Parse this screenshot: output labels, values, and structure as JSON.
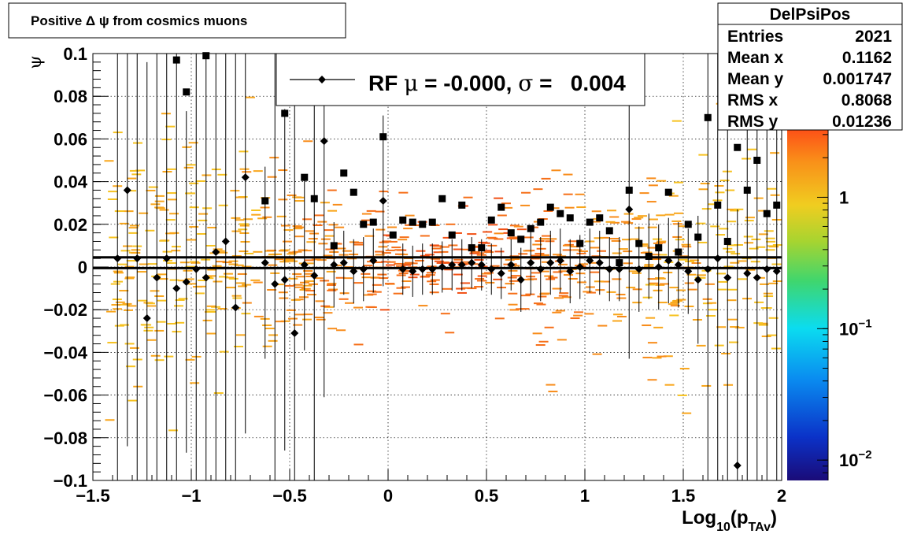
{
  "chart_data": {
    "type": "scatter",
    "title": "Positive Δ ψ from cosmics muons",
    "xlabel_main": "Log",
    "xlabel_sub1": "10",
    "xlabel_open": "(p",
    "xlabel_sub2": "TAv",
    "xlabel_close": ")",
    "ylabel": "ψ",
    "xlim": [
      -1.5,
      2.0
    ],
    "ylim": [
      -0.1,
      0.1
    ],
    "grid": true,
    "x_ticks": [
      {
        "v": -1.5,
        "label": "−1.5"
      },
      {
        "v": -1.0,
        "label": "−1"
      },
      {
        "v": -0.5,
        "label": "−0.5"
      },
      {
        "v": 0.0,
        "label": "0"
      },
      {
        "v": 0.5,
        "label": "0.5"
      },
      {
        "v": 1.0,
        "label": "1"
      },
      {
        "v": 1.5,
        "label": "1.5"
      },
      {
        "v": 2.0,
        "label": "2"
      }
    ],
    "y_ticks": [
      {
        "v": 0.1,
        "label": "0.1"
      },
      {
        "v": 0.08,
        "label": "0.08"
      },
      {
        "v": 0.06,
        "label": "0.06"
      },
      {
        "v": 0.04,
        "label": "0.04"
      },
      {
        "v": 0.02,
        "label": "0.02"
      },
      {
        "v": 0.0,
        "label": "0"
      },
      {
        "v": -0.02,
        "label": "−0.02"
      },
      {
        "v": -0.04,
        "label": "−0.04"
      },
      {
        "v": -0.06,
        "label": "−0.06"
      },
      {
        "v": -0.08,
        "label": "−0.08"
      },
      {
        "v": -0.1,
        "label": "−0.1"
      }
    ],
    "colorbar": {
      "scale": "log",
      "range": [
        0.007,
        4
      ],
      "ticks": [
        {
          "v": 1,
          "base": "1",
          "exp": ""
        },
        {
          "v": 0.1,
          "base": "10",
          "exp": "−1"
        },
        {
          "v": 0.01,
          "base": "10",
          "exp": "−2"
        }
      ]
    },
    "stats": {
      "name": "DelPsiPos",
      "rows": [
        {
          "label": "Entries",
          "value": "2021"
        },
        {
          "label": "Mean x",
          "value": "0.1162"
        },
        {
          "label": "Mean y",
          "value": "0.001747"
        },
        {
          "label": "RMS x",
          "value": "0.8068"
        },
        {
          "label": "RMS y",
          "value": "0.01236"
        }
      ]
    },
    "legend": {
      "placement": "top-center",
      "label_pre": "RF ",
      "mu": "μ",
      "label_mid": " = -0.000, ",
      "sigma": "σ",
      "label_post": " =   0.004"
    },
    "reference_lines": [
      0.0045,
      -0.0005
    ],
    "series": [
      {
        "name": "mean",
        "marker": "diamond",
        "points": [
          {
            "x": -1.375,
            "y": 0.004,
            "err": 0.12
          },
          {
            "x": -1.325,
            "y": 0.036,
            "err": 0.12
          },
          {
            "x": -1.275,
            "y": 0.004,
            "err": 0.12
          },
          {
            "x": -1.225,
            "y": -0.024,
            "err": 0.12
          },
          {
            "x": -1.175,
            "y": -0.005,
            "err": 0.12
          },
          {
            "x": -1.125,
            "y": 0.004,
            "err": 0.12
          },
          {
            "x": -1.075,
            "y": -0.01,
            "err": 0.12
          },
          {
            "x": -1.025,
            "y": -0.007,
            "err": 0.08
          },
          {
            "x": -0.975,
            "y": -0.001,
            "err": 0.12
          },
          {
            "x": -0.925,
            "y": -0.005,
            "err": 0.12
          },
          {
            "x": -0.875,
            "y": 0.007,
            "err": 0.12
          },
          {
            "x": -0.825,
            "y": 0.012,
            "err": 0.12
          },
          {
            "x": -0.775,
            "y": -0.019,
            "err": 0.12
          },
          {
            "x": -0.725,
            "y": 0.042,
            "err": 0.12
          },
          {
            "x": -0.625,
            "y": 0.002,
            "err": 0.045
          },
          {
            "x": -0.575,
            "y": -0.008,
            "err": 0.12
          },
          {
            "x": -0.525,
            "y": -0.006,
            "err": 0.08
          },
          {
            "x": -0.475,
            "y": -0.031,
            "err": 0.12
          },
          {
            "x": -0.425,
            "y": 0.001,
            "err": 0.04
          },
          {
            "x": -0.375,
            "y": -0.004,
            "err": 0.12
          },
          {
            "x": -0.325,
            "y": 0.059,
            "err": 0.12
          },
          {
            "x": -0.275,
            "y": 0.001,
            "err": 0.02
          },
          {
            "x": -0.225,
            "y": 0.002,
            "err": 0.015
          },
          {
            "x": -0.175,
            "y": -0.002,
            "err": 0.015
          },
          {
            "x": -0.125,
            "y": -0.001,
            "err": 0.015
          },
          {
            "x": -0.075,
            "y": 0.003,
            "err": 0.015
          },
          {
            "x": -0.025,
            "y": 0.031,
            "err": 0.04
          },
          {
            "x": 0.075,
            "y": -0.001,
            "err": 0.012
          },
          {
            "x": 0.125,
            "y": -0.002,
            "err": 0.012
          },
          {
            "x": 0.175,
            "y": -0.001,
            "err": 0.012
          },
          {
            "x": 0.225,
            "y": -0.001,
            "err": 0.012
          },
          {
            "x": 0.275,
            "y": 0.0,
            "err": 0.012
          },
          {
            "x": 0.325,
            "y": 0.001,
            "err": 0.012
          },
          {
            "x": 0.375,
            "y": 0.001,
            "err": 0.012
          },
          {
            "x": 0.425,
            "y": 0.002,
            "err": 0.012
          },
          {
            "x": 0.475,
            "y": 0.001,
            "err": 0.012
          },
          {
            "x": 0.525,
            "y": -0.001,
            "err": 0.012
          },
          {
            "x": 0.575,
            "y": -0.003,
            "err": 0.012
          },
          {
            "x": 0.625,
            "y": 0.001,
            "err": 0.012
          },
          {
            "x": 0.675,
            "y": -0.006,
            "err": 0.015
          },
          {
            "x": 0.725,
            "y": 0.002,
            "err": 0.015
          },
          {
            "x": 0.775,
            "y": -0.001,
            "err": 0.015
          },
          {
            "x": 0.825,
            "y": 0.002,
            "err": 0.015
          },
          {
            "x": 0.875,
            "y": 0.003,
            "err": 0.015
          },
          {
            "x": 0.925,
            "y": -0.002,
            "err": 0.015
          },
          {
            "x": 0.975,
            "y": 0.0,
            "err": 0.015
          },
          {
            "x": 1.025,
            "y": 0.003,
            "err": 0.015
          },
          {
            "x": 1.075,
            "y": 0.002,
            "err": 0.015
          },
          {
            "x": 1.125,
            "y": -0.001,
            "err": 0.015
          },
          {
            "x": 1.175,
            "y": -0.001,
            "err": 0.015
          },
          {
            "x": 1.225,
            "y": 0.027,
            "err": 0.07
          },
          {
            "x": 1.275,
            "y": -0.001,
            "err": 0.02
          },
          {
            "x": 1.325,
            "y": 0.005,
            "err": 0.02
          },
          {
            "x": 1.375,
            "y": 0.0,
            "err": 0.02
          },
          {
            "x": 1.425,
            "y": 0.003,
            "err": 0.02
          },
          {
            "x": 1.475,
            "y": 0.001,
            "err": 0.02
          },
          {
            "x": 1.525,
            "y": -0.002,
            "err": 0.02
          },
          {
            "x": 1.575,
            "y": -0.006,
            "err": 0.03
          },
          {
            "x": 1.625,
            "y": -0.001,
            "err": 0.12
          },
          {
            "x": 1.675,
            "y": 0.004,
            "err": 0.12
          },
          {
            "x": 1.725,
            "y": -0.005,
            "err": 0.12
          },
          {
            "x": 1.775,
            "y": -0.093,
            "err": 0.12
          },
          {
            "x": 1.825,
            "y": -0.003,
            "err": 0.12
          },
          {
            "x": 1.875,
            "y": -0.005,
            "err": 0.12
          },
          {
            "x": 1.925,
            "y": -0.001,
            "err": 0.12
          },
          {
            "x": 1.975,
            "y": -0.002,
            "err": 0.12
          }
        ]
      },
      {
        "name": "rms",
        "marker": "square",
        "points": [
          {
            "x": -1.075,
            "y": 0.097
          },
          {
            "x": -1.025,
            "y": 0.082
          },
          {
            "x": -0.925,
            "y": 0.099
          },
          {
            "x": -0.625,
            "y": 0.031
          },
          {
            "x": -0.525,
            "y": 0.072
          },
          {
            "x": -0.425,
            "y": 0.042
          },
          {
            "x": -0.375,
            "y": 0.032
          },
          {
            "x": -0.275,
            "y": 0.01
          },
          {
            "x": -0.225,
            "y": 0.044
          },
          {
            "x": -0.175,
            "y": 0.035
          },
          {
            "x": -0.125,
            "y": 0.02
          },
          {
            "x": -0.075,
            "y": 0.021
          },
          {
            "x": -0.025,
            "y": 0.061
          },
          {
            "x": 0.025,
            "y": 0.015
          },
          {
            "x": 0.075,
            "y": 0.022
          },
          {
            "x": 0.125,
            "y": 0.021
          },
          {
            "x": 0.175,
            "y": 0.02
          },
          {
            "x": 0.225,
            "y": 0.021
          },
          {
            "x": 0.275,
            "y": 0.032
          },
          {
            "x": 0.325,
            "y": 0.015
          },
          {
            "x": 0.375,
            "y": 0.029
          },
          {
            "x": 0.425,
            "y": 0.009
          },
          {
            "x": 0.475,
            "y": 0.009
          },
          {
            "x": 0.525,
            "y": 0.022
          },
          {
            "x": 0.575,
            "y": 0.028
          },
          {
            "x": 0.625,
            "y": 0.016
          },
          {
            "x": 0.675,
            "y": 0.013
          },
          {
            "x": 0.725,
            "y": 0.018
          },
          {
            "x": 0.775,
            "y": 0.021
          },
          {
            "x": 0.825,
            "y": 0.028
          },
          {
            "x": 0.875,
            "y": 0.025
          },
          {
            "x": 0.925,
            "y": 0.023
          },
          {
            "x": 0.975,
            "y": 0.011
          },
          {
            "x": 1.025,
            "y": 0.021
          },
          {
            "x": 1.075,
            "y": 0.023
          },
          {
            "x": 1.125,
            "y": 0.017
          },
          {
            "x": 1.175,
            "y": 0.002
          },
          {
            "x": 1.225,
            "y": 0.036
          },
          {
            "x": 1.275,
            "y": 0.011
          },
          {
            "x": 1.325,
            "y": 0.005
          },
          {
            "x": 1.375,
            "y": 0.009
          },
          {
            "x": 1.425,
            "y": 0.035
          },
          {
            "x": 1.475,
            "y": 0.007
          },
          {
            "x": 1.525,
            "y": 0.02
          },
          {
            "x": 1.575,
            "y": 0.014
          },
          {
            "x": 1.625,
            "y": 0.07
          },
          {
            "x": 1.675,
            "y": 0.029
          },
          {
            "x": 1.725,
            "y": 0.012
          },
          {
            "x": 1.775,
            "y": 0.056
          },
          {
            "x": 1.825,
            "y": 0.036
          },
          {
            "x": 1.875,
            "y": 0.05
          },
          {
            "x": 1.925,
            "y": 0.025
          },
          {
            "x": 1.975,
            "y": 0.029
          }
        ]
      }
    ]
  }
}
